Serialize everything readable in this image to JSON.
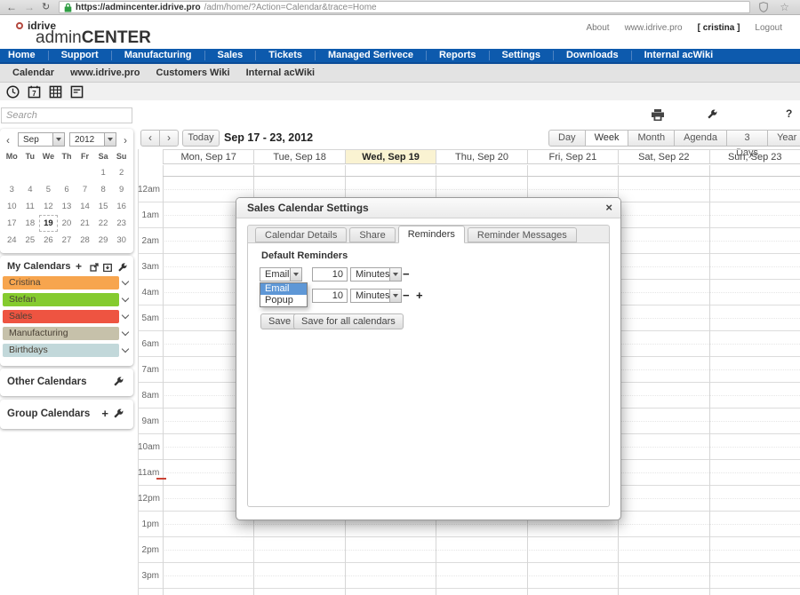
{
  "icons": {
    "back": "←",
    "forward": "→",
    "reload": "↻",
    "star": "☆",
    "help": "?",
    "close": "×",
    "prev": "‹",
    "next": "›",
    "plus": "+",
    "minus": "−"
  },
  "browser": {
    "url_host": "https://admincenter.idrive.pro",
    "url_path": "/adm/home/?Action=Calendar&trace=Home"
  },
  "header": {
    "logo_brand": "idrive",
    "logo_admin": "admin",
    "logo_center": "CENTER",
    "links": [
      "About",
      "www.idrive.pro",
      "[ cristina ]",
      "Logout"
    ]
  },
  "nav_items": [
    "Home",
    "Support",
    "Manufacturing",
    "Sales",
    "Tickets",
    "Managed Serivece",
    "Reports",
    "Settings",
    "Downloads",
    "Internal acWiki"
  ],
  "subnav_items": [
    "Calendar",
    "www.idrive.pro",
    "Customers Wiki",
    "Internal acWiki"
  ],
  "search": {
    "placeholder": "Search"
  },
  "mini_calendar": {
    "month": "Sep",
    "year": "2012",
    "weekdays": [
      "Mo",
      "Tu",
      "We",
      "Th",
      "Fr",
      "Sa",
      "Su"
    ],
    "days": [
      "",
      "",
      "",
      "",
      "",
      "1",
      "2",
      "3",
      "4",
      "5",
      "6",
      "7",
      "8",
      "9",
      "10",
      "11",
      "12",
      "13",
      "14",
      "15",
      "16",
      "17",
      "18",
      "19",
      "20",
      "21",
      "22",
      "23",
      "24",
      "25",
      "26",
      "27",
      "28",
      "29",
      "30"
    ],
    "selected_day": "19"
  },
  "sidebar": {
    "my_calendars_title": "My Calendars",
    "calendars": [
      {
        "label": "Cristina",
        "color": "#f7a54e"
      },
      {
        "label": "Stefan",
        "color": "#85cb2f"
      },
      {
        "label": "Sales",
        "color": "#ee5441"
      },
      {
        "label": "Manufacturing",
        "color": "#c6c1aa"
      },
      {
        "label": "Birthdays",
        "color": "#c2d8da"
      }
    ],
    "other_calendars_title": "Other Calendars",
    "group_calendars_title": "Group Calendars"
  },
  "calendar": {
    "today_label": "Today",
    "title": "Sep 17 - 23, 2012",
    "views": [
      "Day",
      "Week",
      "Month",
      "Agenda",
      "3 Days",
      "Year"
    ],
    "active_view": "Week",
    "days": [
      "Mon, Sep 17",
      "Tue, Sep 18",
      "Wed, Sep 19",
      "Thu, Sep 20",
      "Fri, Sep 21",
      "Sat, Sep 22",
      "Sun, Sep 23"
    ],
    "highlighted_day_index": 2,
    "hours": [
      "12am",
      "1am",
      "2am",
      "3am",
      "4am",
      "5am",
      "6am",
      "7am",
      "8am",
      "9am",
      "10am",
      "11am",
      "12pm",
      "1pm",
      "2pm",
      "3pm"
    ]
  },
  "modal": {
    "title": "Sales Calendar Settings",
    "tabs": [
      "Calendar Details",
      "Share",
      "Reminders",
      "Reminder Messages"
    ],
    "active_tab_index": 2,
    "section_title": "Default Reminders",
    "reminder_rows": [
      {
        "method": "Email",
        "value": "10",
        "unit": "Minutes"
      },
      {
        "method": "",
        "value": "10",
        "unit": "Minutes"
      }
    ],
    "dropdown_options": [
      "Email",
      "Popup"
    ],
    "dropdown_selected_index": 0,
    "save_label": "Save",
    "save_all_label": "Save for all calendars"
  }
}
